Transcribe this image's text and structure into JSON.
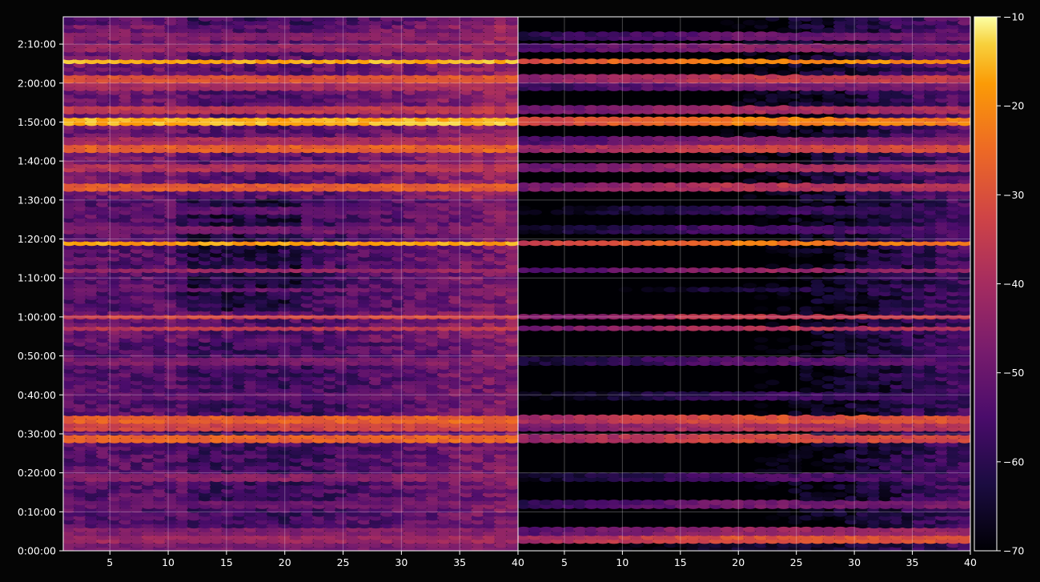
{
  "chart_data": {
    "type": "heatmap",
    "title": "",
    "xlabel": "",
    "ylabel": "",
    "panels": [
      {
        "name": "",
        "xlim": [
          1,
          40
        ],
        "x_ticks": [
          "5",
          "10",
          "15",
          "20",
          "25",
          "30",
          "35",
          "40"
        ],
        "x_tick_values": [
          5,
          10,
          15,
          20,
          25,
          30,
          35,
          40
        ]
      },
      {
        "name": "",
        "xlim": [
          1,
          40
        ],
        "x_ticks": [
          "5",
          "10",
          "15",
          "20",
          "25",
          "30",
          "35",
          "40"
        ],
        "x_tick_values": [
          5,
          10,
          15,
          20,
          25,
          30,
          35,
          40
        ]
      }
    ],
    "y_ticks": [
      "0:00:00",
      "0:10:00",
      "0:20:00",
      "0:30:00",
      "0:40:00",
      "0:50:00",
      "1:00:00",
      "1:10:00",
      "1:20:00",
      "1:30:00",
      "1:40:00",
      "1:50:00",
      "2:00:00",
      "2:10:00"
    ],
    "y_tick_minutes": [
      0,
      10,
      20,
      30,
      40,
      50,
      60,
      70,
      80,
      90,
      100,
      110,
      120,
      130
    ],
    "ylim_minutes": [
      0,
      137
    ],
    "colorbar": {
      "colormap": "inferno",
      "range": [
        -70,
        -10
      ],
      "ticks": [
        "−10",
        "−20",
        "−30",
        "−40",
        "−50",
        "−60",
        "−70"
      ],
      "tick_values": [
        -10,
        -20,
        -30,
        -40,
        -50,
        -60,
        -70
      ]
    },
    "bands": [
      {
        "t": 1,
        "left": -48,
        "right": -65
      },
      {
        "t": 3,
        "left": -42,
        "right": -30
      },
      {
        "t": 5,
        "left": -46,
        "right": -42
      },
      {
        "t": 12,
        "left": -50,
        "right": -48
      },
      {
        "t": 19,
        "left": -45,
        "right": -55
      },
      {
        "t": 28.5,
        "left": -27,
        "right": -32
      },
      {
        "t": 31.5,
        "left": -33,
        "right": -38
      },
      {
        "t": 34,
        "left": -27,
        "right": -30
      },
      {
        "t": 40,
        "left": -52,
        "right": -58
      },
      {
        "t": 49,
        "left": -47,
        "right": -53
      },
      {
        "t": 57,
        "left": -36,
        "right": -38
      },
      {
        "t": 60,
        "left": -33,
        "right": -35
      },
      {
        "t": 67,
        "left": -50,
        "right": -62
      },
      {
        "t": 72,
        "left": -42,
        "right": -43
      },
      {
        "t": 79,
        "left": -18,
        "right": -23
      },
      {
        "t": 82,
        "left": -48,
        "right": -55
      },
      {
        "t": 87.5,
        "left": -52,
        "right": -58
      },
      {
        "t": 93,
        "left": -28,
        "right": -37
      },
      {
        "t": 98,
        "left": -38,
        "right": -40
      },
      {
        "t": 103,
        "left": -27,
        "right": -32
      },
      {
        "t": 105,
        "left": -40,
        "right": -45
      },
      {
        "t": 110.5,
        "left": -16,
        "right": -22
      },
      {
        "t": 113.5,
        "left": -36,
        "right": -40
      },
      {
        "t": 119,
        "left": -40,
        "right": -48
      },
      {
        "t": 121,
        "left": -30,
        "right": -35
      },
      {
        "t": 125.5,
        "left": -16,
        "right": -20
      },
      {
        "t": 129,
        "left": -42,
        "right": -45
      },
      {
        "t": 132,
        "left": -46,
        "right": -50
      }
    ]
  }
}
